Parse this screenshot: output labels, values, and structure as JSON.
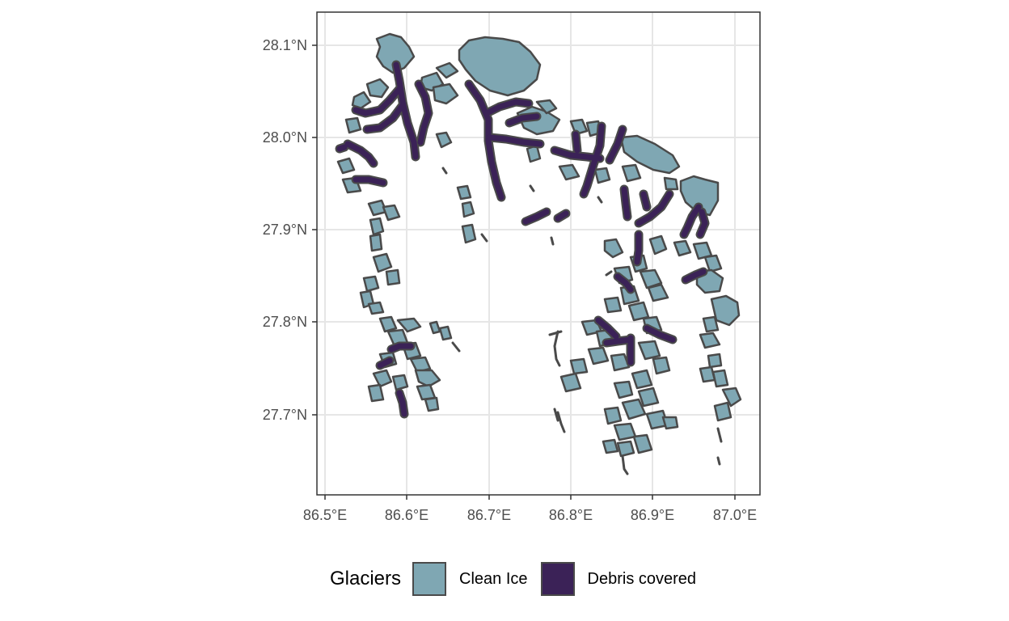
{
  "map": {
    "x_ticks": [
      "86.5°E",
      "86.6°E",
      "86.7°E",
      "86.8°E",
      "86.9°E",
      "87.0°E"
    ],
    "y_ticks": [
      "28.1°N",
      "28.0°N",
      "27.9°N",
      "27.8°N",
      "27.7°N"
    ],
    "lon_range": [
      86.485,
      87.035
    ],
    "lat_range": [
      27.615,
      28.135
    ],
    "grid": true
  },
  "legend": {
    "title": "Glaciers",
    "items": [
      {
        "label": "Clean Ice",
        "color": "#7fa7b3"
      },
      {
        "label": "Debris covered",
        "color": "#3b2257"
      }
    ]
  },
  "colors": {
    "clean_ice": "#7fa7b3",
    "debris": "#3b2257",
    "outline": "#4a4a4a",
    "grid": "#e6e6e6",
    "frame": "#333333"
  }
}
